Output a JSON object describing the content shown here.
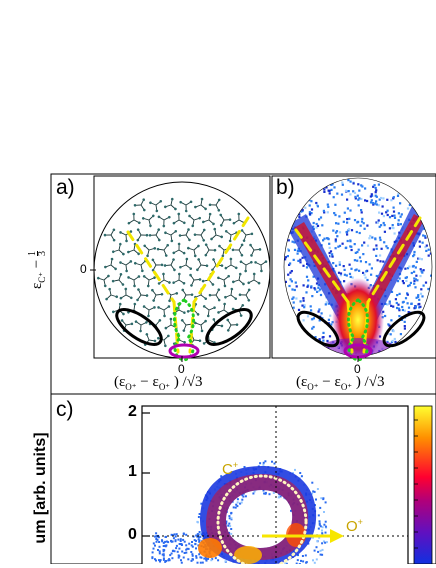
{
  "figure": {
    "panels": [
      {
        "id": "a",
        "label": "a)",
        "ylabel": "εC+ − 1/3",
        "ylabel_main": "ε",
        "ylabel_sub": "C⁺",
        "ylabel_minus": "−",
        "ylabel_frac_num": "1",
        "ylabel_frac_den": "3",
        "ytick": "0",
        "xtick": "0",
        "xlabel": "(εO+ − εO+ ) /√3",
        "xlabel_open": "(ε",
        "xlabel_sub1": "O⁺",
        "xlabel_mid": " − ε",
        "xlabel_sub2": "O⁺",
        "xlabel_close": " ) /√3"
      },
      {
        "id": "b",
        "label": "b)",
        "xtick": "0",
        "xlabel_open": "(ε",
        "xlabel_sub1": "O⁺",
        "xlabel_mid": " − ε",
        "xlabel_sub2": "O⁺",
        "xlabel_close": " ) /√3"
      },
      {
        "id": "c",
        "label": "c)",
        "ylabel": "um [arb. units]",
        "yticks": [
          "2",
          "1",
          "0"
        ],
        "annotations": {
          "c_ion": "C",
          "c_ion_sup": "+",
          "o_ion": "O",
          "o_ion_sup": "+"
        }
      }
    ],
    "colors": {
      "yellow_dash": "#f2e600",
      "green_dot": "#22cc22",
      "black_ellipse": "#000000",
      "magenta_ellipse": "#b000b0",
      "arrow_yellow": "#f7e600",
      "annotation_text": "#c8a400"
    }
  }
}
